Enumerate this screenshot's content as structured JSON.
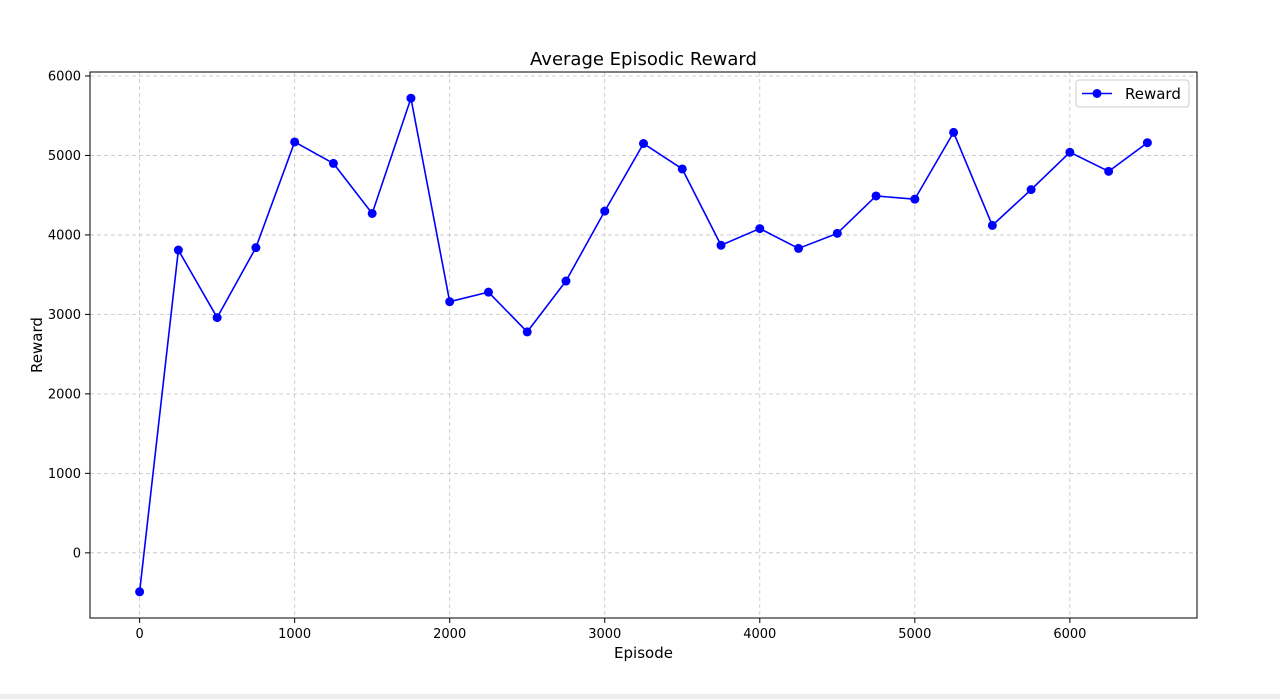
{
  "chart_data": {
    "type": "line",
    "title": "Average Episodic Reward",
    "xlabel": "Episode",
    "ylabel": "Reward",
    "xlim": [
      -320,
      6820
    ],
    "ylim": [
      -820,
      6050
    ],
    "xticks": [
      0,
      1000,
      2000,
      3000,
      4000,
      5000,
      6000
    ],
    "yticks": [
      0,
      1000,
      2000,
      3000,
      4000,
      5000,
      6000
    ],
    "grid": true,
    "legend_position": "top-right",
    "series": [
      {
        "name": "Reward",
        "color": "#0000ff",
        "marker": "circle",
        "x": [
          0,
          250,
          500,
          750,
          1000,
          1250,
          1500,
          1750,
          2000,
          2250,
          2500,
          2750,
          3000,
          3250,
          3500,
          3750,
          4000,
          4250,
          4500,
          4750,
          5000,
          5250,
          5500,
          5750,
          6000,
          6250,
          6500
        ],
        "y": [
          -490,
          3810,
          2960,
          3840,
          5170,
          4900,
          4270,
          5720,
          3160,
          3280,
          2780,
          3420,
          4300,
          5150,
          4830,
          3870,
          4080,
          3830,
          4020,
          4490,
          4450,
          5290,
          4120,
          4570,
          5040,
          4800,
          5160
        ]
      }
    ]
  }
}
